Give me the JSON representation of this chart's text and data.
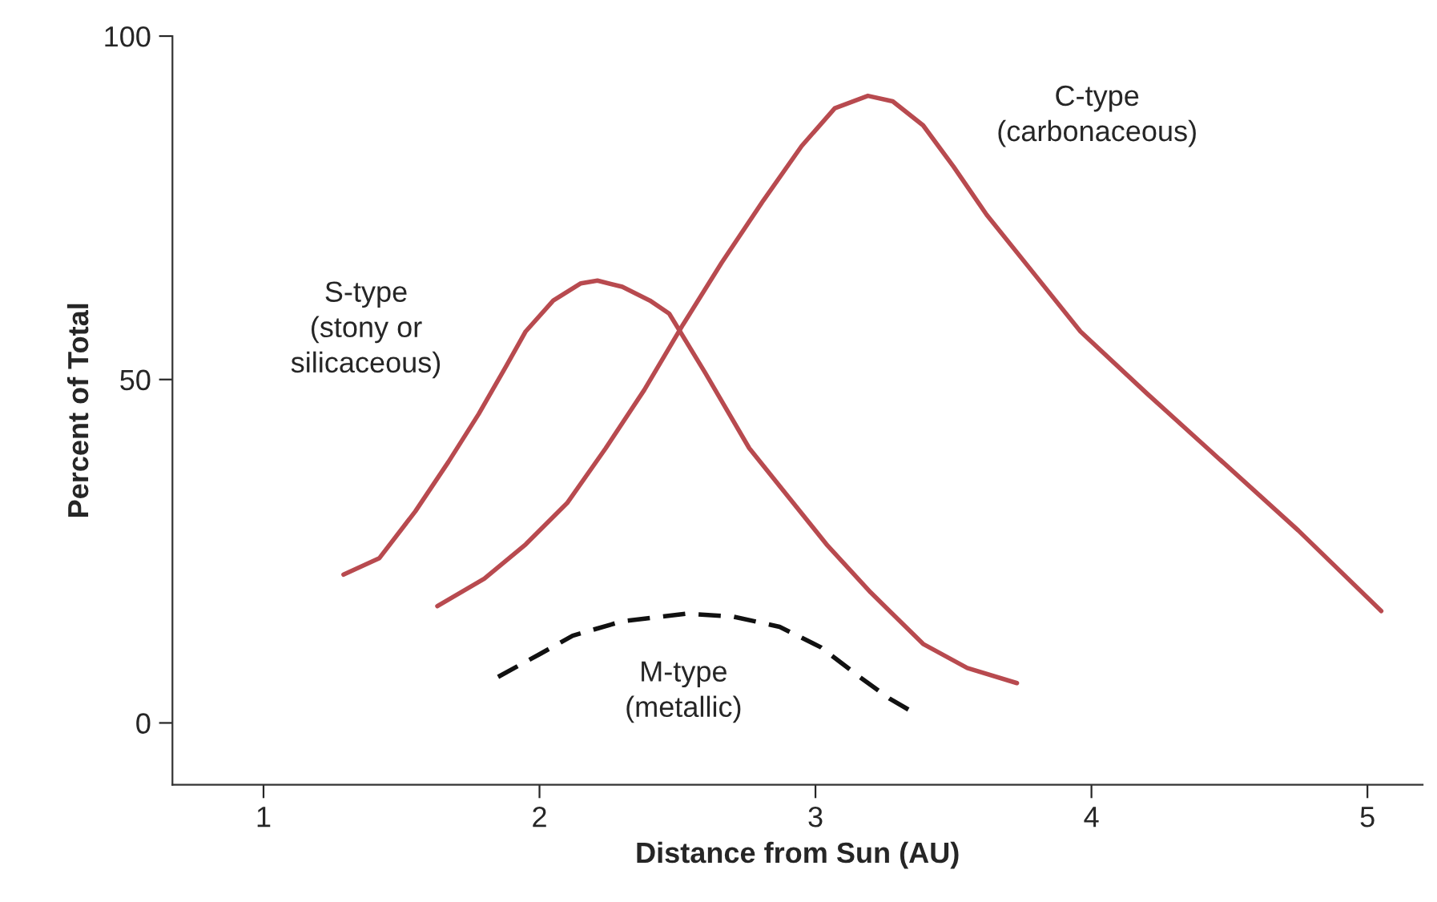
{
  "chart_data": {
    "type": "line",
    "xlabel": "Distance from Sun (AU)",
    "ylabel": "Percent of Total",
    "xlim": [
      0.67,
      5.2
    ],
    "ylim": [
      -9,
      100
    ],
    "xticks": [
      1,
      2,
      3,
      4,
      5
    ],
    "yticks": [
      0,
      50,
      100
    ],
    "grid": false,
    "marker": "none",
    "series": [
      {
        "name": "S-type\n(stony or\nsilicaceous)",
        "color": "#b84a4f",
        "line_style": "solid",
        "x": [
          1.29,
          1.42,
          1.55,
          1.67,
          1.78,
          1.88,
          1.95,
          2.05,
          2.15,
          2.21,
          2.3,
          2.4,
          2.47,
          2.6,
          2.76,
          2.9,
          3.04,
          3.2,
          3.39,
          3.55,
          3.73
        ],
        "values": [
          21.6,
          24,
          30.8,
          38,
          45,
          52,
          57,
          61.5,
          64,
          64.4,
          63.5,
          61.5,
          59.6,
          51,
          40,
          33,
          26,
          19,
          11.5,
          8,
          5.8
        ]
      },
      {
        "name": "C-type\n(carbonaceous)",
        "color": "#b84a4f",
        "line_style": "solid",
        "x": [
          1.63,
          1.8,
          1.95,
          2.1,
          2.24,
          2.38,
          2.52,
          2.66,
          2.81,
          2.95,
          3.07,
          3.19,
          3.28,
          3.39,
          3.5,
          3.62,
          3.8,
          3.96,
          4.2,
          4.42,
          4.75,
          5.05
        ],
        "values": [
          17,
          21,
          26,
          32,
          40,
          48.5,
          58,
          67,
          76,
          84,
          89.5,
          91.3,
          90.5,
          87,
          81,
          74,
          65,
          57,
          48,
          40,
          28,
          16.3
        ]
      },
      {
        "name": "M-type\n(metallic)",
        "color": "#111111",
        "line_style": "dashed",
        "x": [
          1.85,
          2.0,
          2.12,
          2.3,
          2.53,
          2.7,
          2.87,
          3.02,
          3.16,
          3.27,
          3.36
        ],
        "values": [
          6.7,
          10,
          12.7,
          14.8,
          15.9,
          15.5,
          14,
          11,
          6.7,
          3.5,
          1.4
        ]
      }
    ]
  }
}
